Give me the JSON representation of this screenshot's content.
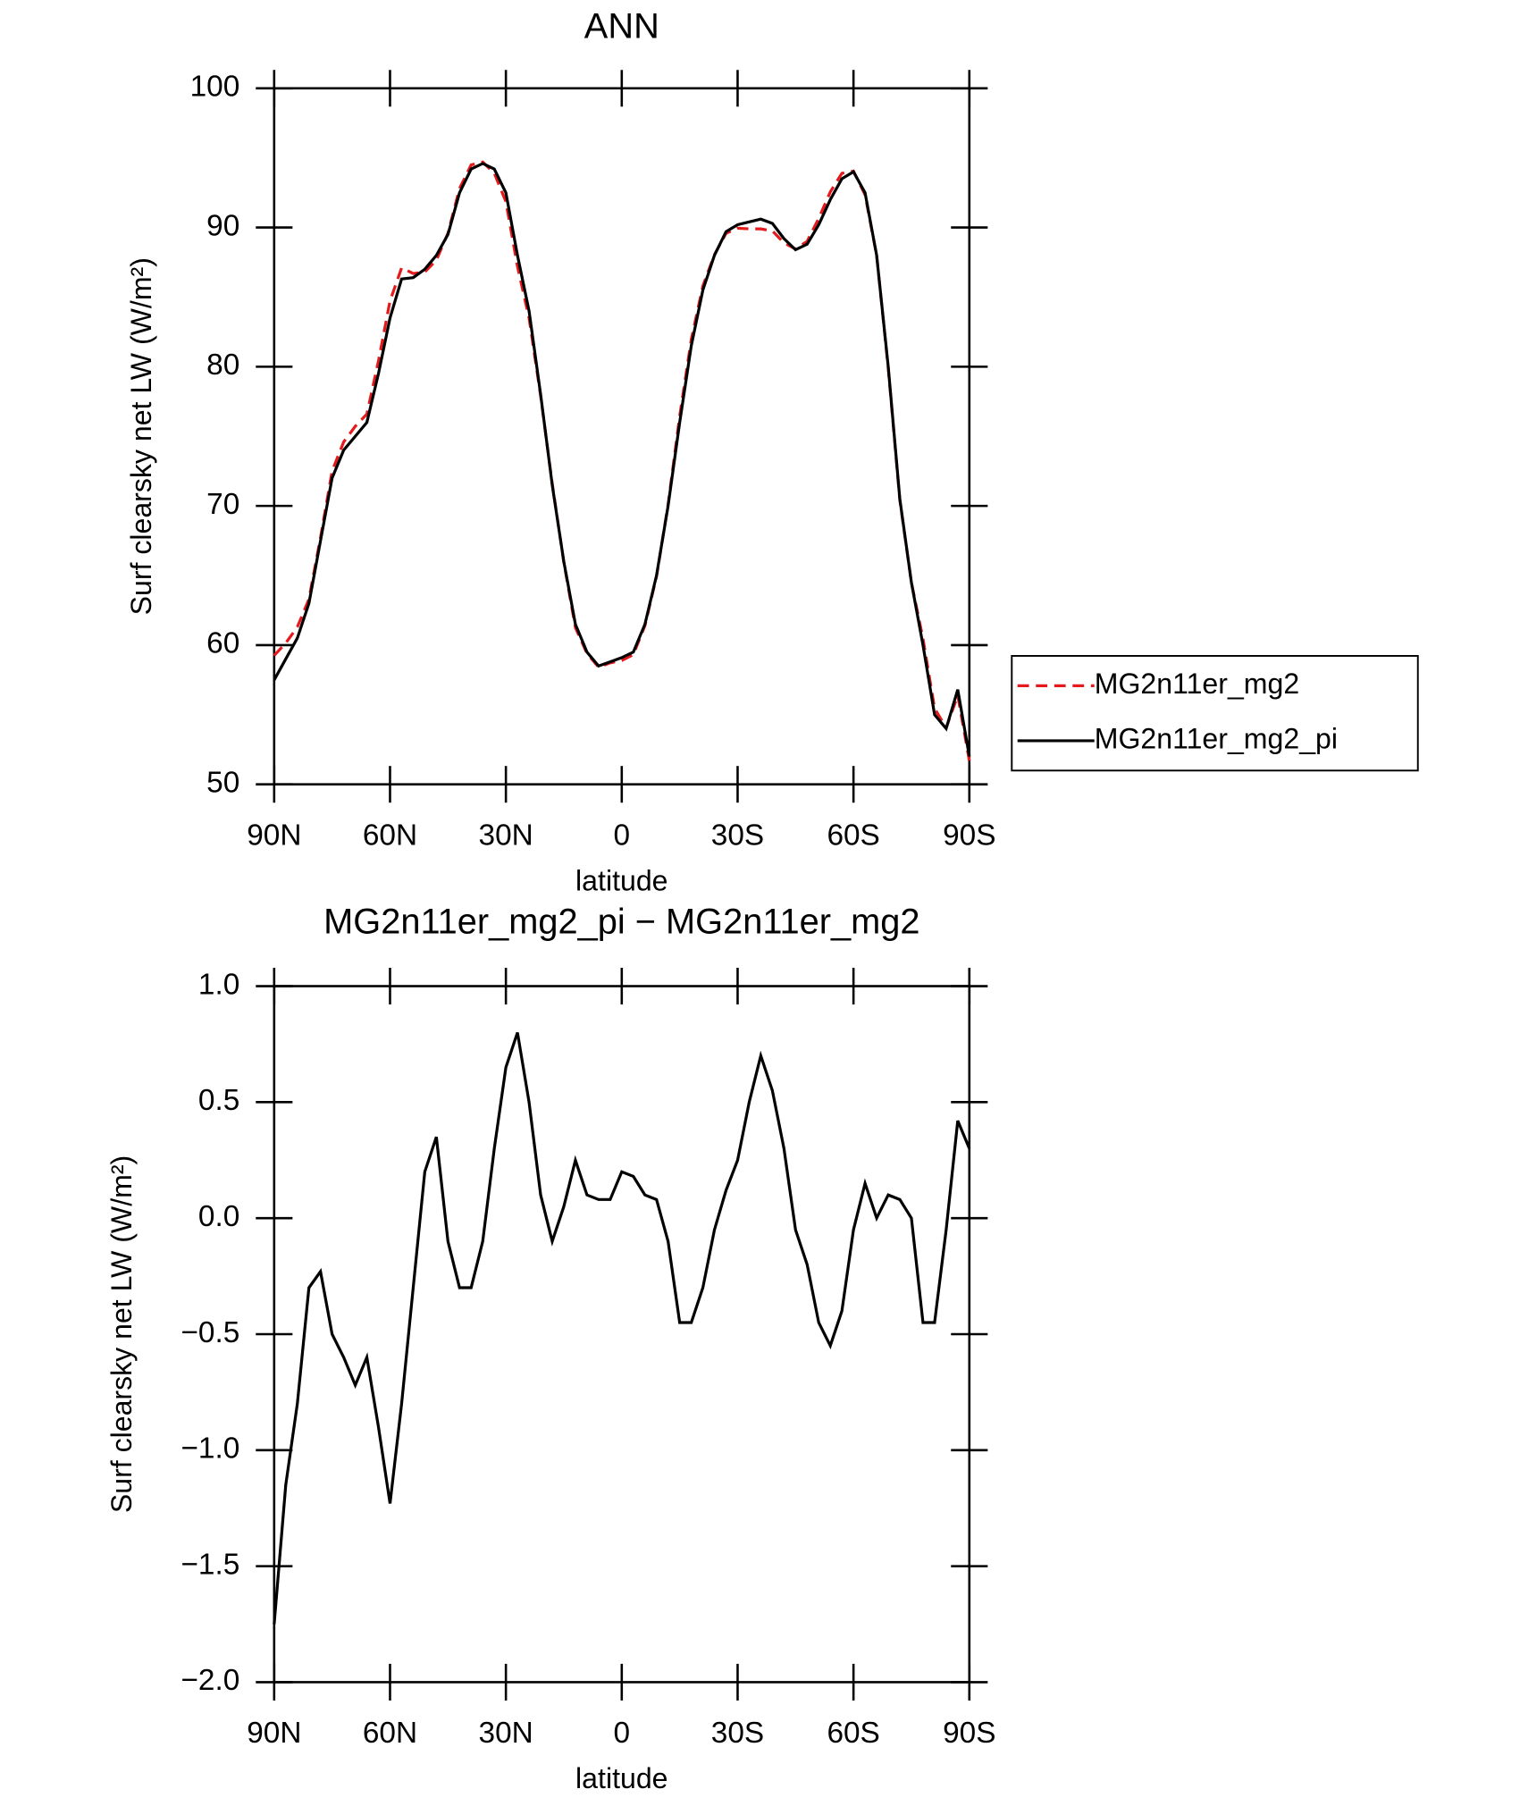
{
  "chart_data": [
    {
      "type": "line",
      "title": "ANN",
      "xlabel": "latitude",
      "ylabel": "Surf clearsky net LW (W/m²)",
      "x": [
        90,
        87,
        84,
        81,
        78,
        75,
        72,
        69,
        66,
        63,
        60,
        57,
        54,
        51,
        48,
        45,
        42,
        39,
        36,
        33,
        30,
        27,
        24,
        21,
        18,
        15,
        12,
        9,
        6,
        3,
        0,
        -3,
        -6,
        -9,
        -12,
        -15,
        -18,
        -21,
        -24,
        -27,
        -30,
        -33,
        -36,
        -39,
        -42,
        -45,
        -48,
        -51,
        -54,
        -57,
        -60,
        -63,
        -66,
        -69,
        -72,
        -75,
        -78,
        -81,
        -84,
        -87,
        -90
      ],
      "series": [
        {
          "name": "MG2n11er_mg2",
          "color": "#e41a1c",
          "dash": true,
          "values": [
            59.25,
            60.15,
            61.3,
            63.3,
            67.73,
            72.5,
            74.6,
            75.72,
            76.6,
            80.4,
            84.73,
            87.1,
            86.7,
            86.8,
            87.65,
            89.6,
            92.8,
            94.5,
            94.7,
            93.9,
            91.85,
            87.2,
            83.5,
            77.9,
            71.6,
            65.95,
            61.25,
            59.4,
            58.42,
            58.72,
            58.9,
            59.32,
            61.4,
            64.92,
            70.1,
            76.45,
            81.95,
            85.8,
            88.05,
            89.58,
            89.95,
            89.9,
            89.9,
            89.75,
            88.9,
            88.45,
            89.0,
            90.65,
            92.55,
            93.9,
            94.05,
            92.35,
            88.0,
            79.9,
            70.42,
            64.5,
            60.45,
            55.45,
            54.05,
            56.38,
            51.7
          ]
        },
        {
          "name": "MG2n11er_mg2_pi",
          "color": "#000000",
          "dash": false,
          "values": [
            57.5,
            59,
            60.5,
            63,
            67.5,
            72,
            74,
            75,
            76,
            79.5,
            83.5,
            86.3,
            86.4,
            87,
            88,
            89.5,
            92.5,
            94.2,
            94.6,
            94.2,
            92.5,
            88,
            84,
            78,
            71.5,
            66,
            61.5,
            59.5,
            58.5,
            58.8,
            59.1,
            59.5,
            61.5,
            65,
            70,
            76,
            81.5,
            85.5,
            88,
            89.7,
            90.2,
            90.4,
            90.6,
            90.3,
            89.2,
            88.4,
            88.8,
            90.2,
            92,
            93.5,
            94.0,
            92.5,
            88,
            80,
            70.5,
            64.5,
            60,
            55,
            54,
            56.8,
            52
          ]
        }
      ],
      "xlim": [
        90,
        -90
      ],
      "xticks": [
        {
          "value": 90,
          "label": "90N"
        },
        {
          "value": 60,
          "label": "60N"
        },
        {
          "value": 30,
          "label": "30N"
        },
        0,
        {
          "value": -30,
          "label": "30S"
        },
        {
          "value": -60,
          "label": "60S"
        },
        {
          "value": -90,
          "label": "90S"
        }
      ],
      "ylim": [
        50,
        100
      ],
      "yticks": [
        50,
        60,
        70,
        80,
        90,
        100
      ],
      "legend": "right"
    },
    {
      "type": "line",
      "title": "MG2n11er_mg2_pi − MG2n11er_mg2",
      "xlabel": "latitude",
      "ylabel": "Surf clearsky net LW (W/m²)",
      "x": [
        90,
        87,
        84,
        81,
        78,
        75,
        72,
        69,
        66,
        63,
        60,
        57,
        54,
        51,
        48,
        45,
        42,
        39,
        36,
        33,
        30,
        27,
        24,
        21,
        18,
        15,
        12,
        9,
        6,
        3,
        0,
        -3,
        -6,
        -9,
        -12,
        -15,
        -18,
        -21,
        -24,
        -27,
        -30,
        -33,
        -36,
        -39,
        -42,
        -45,
        -48,
        -51,
        -54,
        -57,
        -60,
        -63,
        -66,
        -69,
        -72,
        -75,
        -78,
        -81,
        -84,
        -87,
        -90
      ],
      "series": [
        {
          "color": "#000000",
          "dash": false,
          "values": [
            -1.75,
            -1.15,
            -0.8,
            -0.3,
            -0.23,
            -0.5,
            -0.6,
            -0.72,
            -0.6,
            -0.9,
            -1.23,
            -0.8,
            -0.3,
            0.2,
            0.35,
            -0.1,
            -0.3,
            -0.3,
            -0.1,
            0.3,
            0.65,
            0.8,
            0.5,
            0.1,
            -0.1,
            0.05,
            0.25,
            0.1,
            0.08,
            0.08,
            0.2,
            0.18,
            0.1,
            0.08,
            -0.1,
            -0.45,
            -0.45,
            -0.3,
            -0.05,
            0.12,
            0.25,
            0.5,
            0.7,
            0.55,
            0.3,
            -0.05,
            -0.2,
            -0.45,
            -0.55,
            -0.4,
            -0.05,
            0.15,
            0.0,
            0.1,
            0.08,
            0.0,
            -0.45,
            -0.45,
            -0.05,
            0.42,
            0.3
          ]
        }
      ],
      "xlim": [
        90,
        -90
      ],
      "xticks": [
        {
          "value": 90,
          "label": "90N"
        },
        {
          "value": 60,
          "label": "60N"
        },
        {
          "value": 30,
          "label": "30N"
        },
        0,
        {
          "value": -30,
          "label": "30S"
        },
        {
          "value": -60,
          "label": "60S"
        },
        {
          "value": -90,
          "label": "90S"
        }
      ],
      "ylim": [
        -2,
        1
      ],
      "yticks": [
        {
          "value": -2,
          "label": "−2.0"
        },
        {
          "value": -1.5,
          "label": "−1.5"
        },
        {
          "value": -1,
          "label": "−1.0"
        },
        {
          "value": -0.5,
          "label": "−0.5"
        },
        {
          "value": 0,
          "label": "0.0"
        },
        {
          "value": 0.5,
          "label": "0.5"
        },
        {
          "value": 1,
          "label": "1.0"
        }
      ]
    }
  ]
}
